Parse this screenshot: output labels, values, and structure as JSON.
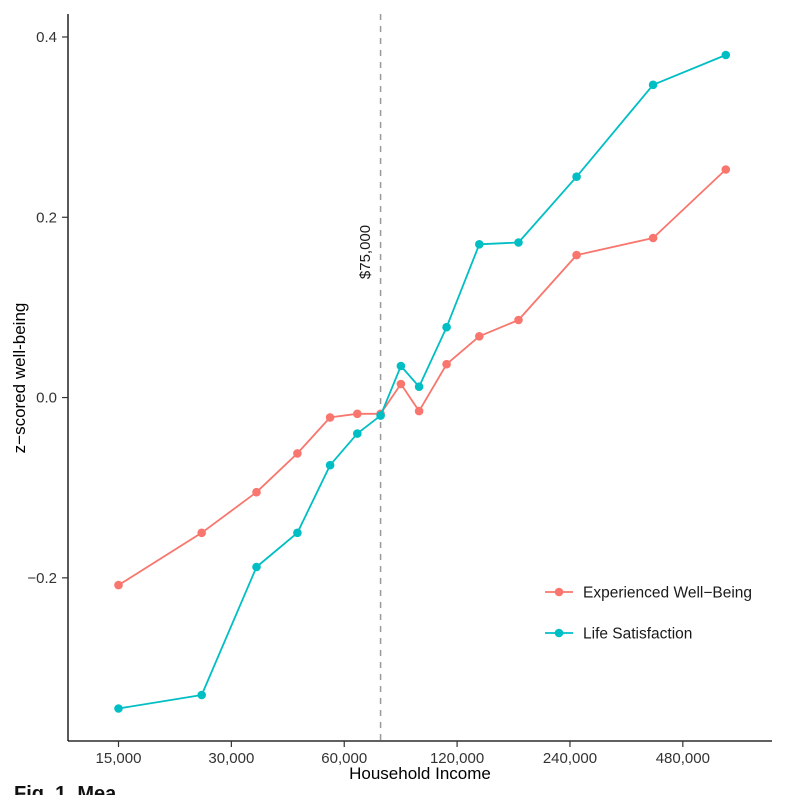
{
  "caption_fragment": "Fig. 1. Mea",
  "chart_data": {
    "type": "line",
    "title": "",
    "xlabel": "Household Income",
    "ylabel": "z−scored well-being",
    "x_scale": "log2",
    "xlim": [
      11000,
      830000
    ],
    "ylim": [
      -0.381,
      0.4255
    ],
    "grid": false,
    "x_ticks": [
      15000,
      30000,
      60000,
      120000,
      240000,
      480000
    ],
    "x_tick_labels": [
      "15,000",
      "30,000",
      "60,000",
      "120,000",
      "240,000",
      "480,000"
    ],
    "y_ticks": [
      -0.2,
      0,
      0.2,
      0.4
    ],
    "y_tick_labels": [
      "−0.2",
      "0.0",
      "0.2",
      "0.4"
    ],
    "vline": {
      "x": 75000,
      "label": "$75,000",
      "style": "dashed",
      "color": "#999999"
    },
    "x": [
      15000,
      25000,
      35000,
      45000,
      55000,
      65000,
      75000,
      85000,
      95000,
      112500,
      137500,
      175000,
      250000,
      400000,
      625000
    ],
    "series": [
      {
        "name": "Experienced Well−Being",
        "color": "#F8766D",
        "values": [
          -0.208,
          -0.15,
          -0.105,
          -0.062,
          -0.022,
          -0.018,
          -0.018,
          0.015,
          -0.015,
          0.037,
          0.068,
          0.086,
          0.158,
          0.177,
          0.253
        ]
      },
      {
        "name": "Life Satisfaction",
        "color": "#00BFC4",
        "values": [
          -0.345,
          -0.33,
          -0.188,
          -0.15,
          -0.075,
          -0.04,
          -0.02,
          0.035,
          0.012,
          0.078,
          0.17,
          0.172,
          0.245,
          0.347,
          0.38
        ]
      }
    ],
    "legend": {
      "position": "inside-right-bottom"
    }
  }
}
